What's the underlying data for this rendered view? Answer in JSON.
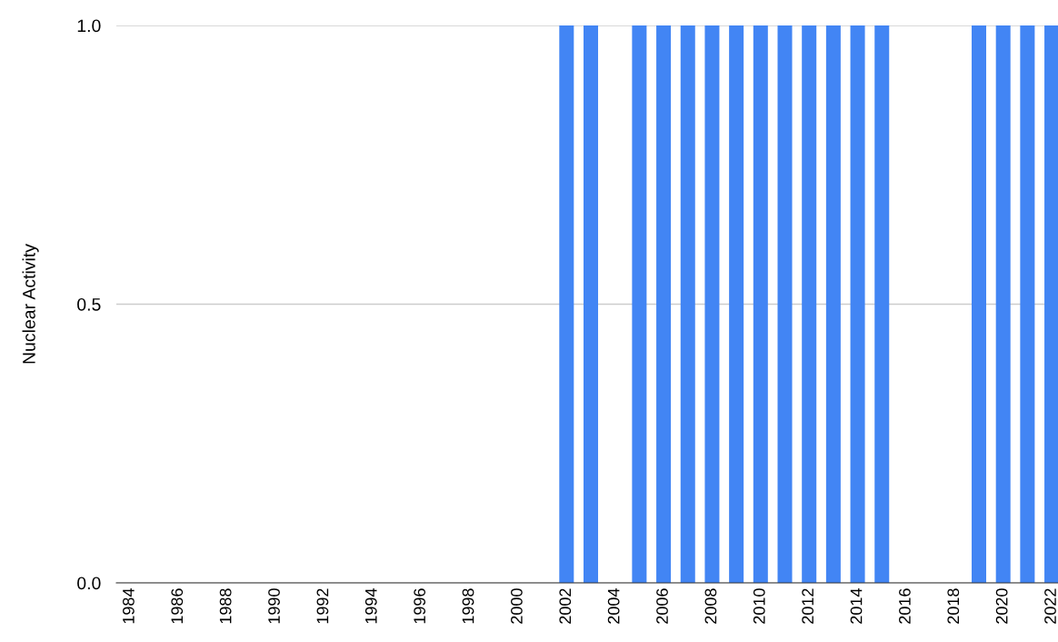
{
  "chart_data": {
    "type": "bar",
    "ylabel": "Nuclear Activity",
    "categories": [
      "1984",
      null,
      "1986",
      null,
      "1988",
      null,
      "1990",
      null,
      "1992",
      null,
      "1994",
      null,
      "1996",
      null,
      "1998",
      null,
      "2000",
      null,
      "2002",
      null,
      "2004",
      null,
      "2006",
      null,
      "2008",
      null,
      "2010",
      null,
      "2012",
      null,
      "2014",
      null,
      "2016",
      null,
      "2018",
      null,
      "2020",
      null,
      "2022"
    ],
    "values": [
      0,
      0,
      0,
      0,
      0,
      0,
      0,
      0,
      0,
      0,
      0,
      0,
      0,
      0,
      0,
      0,
      0,
      0,
      1,
      1,
      0,
      1,
      1,
      1,
      1,
      1,
      1,
      1,
      1,
      1,
      1,
      1,
      0,
      0,
      0,
      1,
      1,
      1,
      1
    ],
    "color": "#4285f4",
    "ylim": [
      0,
      1
    ],
    "yticks": [
      {
        "value": 0,
        "label": "0.0"
      },
      {
        "value": 0.5,
        "label": "0.5"
      },
      {
        "value": 1,
        "label": "1.0"
      }
    ],
    "grid": "y"
  }
}
